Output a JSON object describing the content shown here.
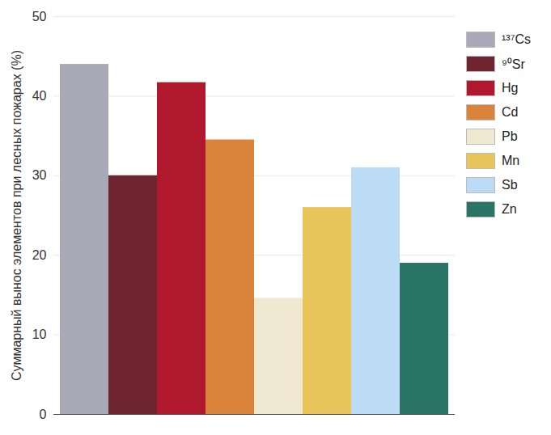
{
  "chart_data": {
    "type": "bar",
    "y_label": "Суммарный вынос элементов при лесных пожарах (%)",
    "categories": [
      "¹³⁷Cs",
      "⁹⁰Sr",
      "Hg",
      "Cd",
      "Pb",
      "Mn",
      "Sb",
      "Zn"
    ],
    "values": [
      44,
      30,
      41.7,
      34.5,
      14.6,
      26,
      31,
      19
    ],
    "colors": [
      "#a9a9b7",
      "#6e2530",
      "#b0182e",
      "#d9843a",
      "#f1e8d2",
      "#e9c45a",
      "#bcdcf5",
      "#2a7467"
    ],
    "ylim": [
      0,
      50
    ],
    "yticks": [
      0,
      10,
      20,
      30,
      40,
      50
    ],
    "grid": true,
    "legend": "right",
    "tick_labels": "y"
  }
}
